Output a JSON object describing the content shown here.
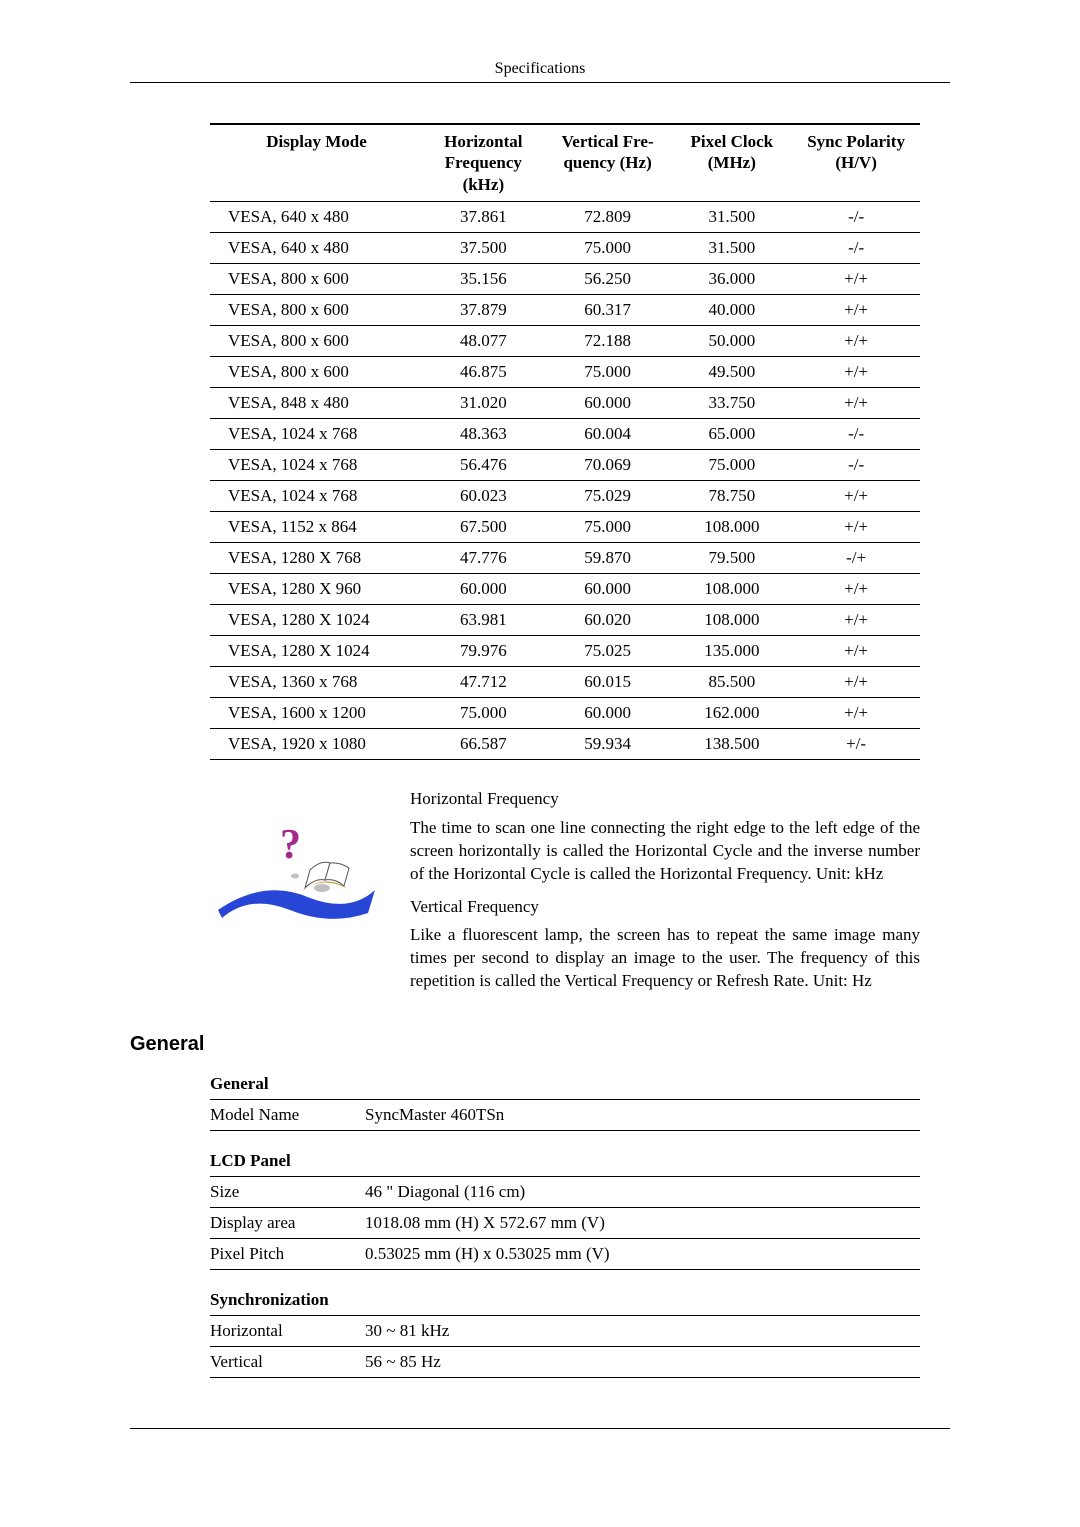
{
  "header": {
    "title": "Specifications"
  },
  "timing_table": {
    "headers": [
      "Display Mode",
      "Horizontal Frequency (kHz)",
      "Vertical Fre- quency (Hz)",
      "Pixel Clock (MHz)",
      "Sync Polarity (H/V)"
    ],
    "col_widths_pct": [
      30,
      17,
      18,
      17,
      18
    ],
    "rows": [
      [
        "VESA, 640 x 480",
        "37.861",
        "72.809",
        "31.500",
        "-/-"
      ],
      [
        "VESA, 640 x 480",
        "37.500",
        "75.000",
        "31.500",
        "-/-"
      ],
      [
        "VESA, 800 x 600",
        "35.156",
        "56.250",
        "36.000",
        "+/+"
      ],
      [
        "VESA, 800 x 600",
        "37.879",
        "60.317",
        "40.000",
        "+/+"
      ],
      [
        "VESA, 800 x 600",
        "48.077",
        "72.188",
        "50.000",
        "+/+"
      ],
      [
        "VESA, 800 x 600",
        "46.875",
        "75.000",
        "49.500",
        "+/+"
      ],
      [
        "VESA, 848 x 480",
        "31.020",
        "60.000",
        "33.750",
        "+/+"
      ],
      [
        "VESA, 1024 x 768",
        "48.363",
        "60.004",
        "65.000",
        "-/-"
      ],
      [
        "VESA, 1024 x 768",
        "56.476",
        "70.069",
        "75.000",
        "-/-"
      ],
      [
        "VESA, 1024 x 768",
        "60.023",
        "75.029",
        "78.750",
        "+/+"
      ],
      [
        "VESA, 1152 x 864",
        "67.500",
        "75.000",
        "108.000",
        "+/+"
      ],
      [
        "VESA, 1280 X 768",
        "47.776",
        "59.870",
        "79.500",
        "-/+"
      ],
      [
        "VESA, 1280 X 960",
        "60.000",
        "60.000",
        "108.000",
        "+/+"
      ],
      [
        "VESA, 1280 X 1024",
        "63.981",
        "60.020",
        "108.000",
        "+/+"
      ],
      [
        "VESA, 1280 X 1024",
        "79.976",
        "75.025",
        "135.000",
        "+/+"
      ],
      [
        "VESA, 1360 x 768",
        "47.712",
        "60.015",
        "85.500",
        "+/+"
      ],
      [
        "VESA, 1600 x 1200",
        "75.000",
        "60.000",
        "162.000",
        "+/+"
      ],
      [
        "VESA, 1920 x 1080",
        "66.587",
        "59.934",
        "138.500",
        "+/-"
      ]
    ]
  },
  "info": {
    "hf_title": "Horizontal Frequency",
    "hf_text": "The time to scan one line connecting the right edge to the left edge of the screen horizontally is called the Horizontal Cycle and the inverse number of the Horizontal Cycle is called the Horizontal Frequency. Unit: kHz",
    "vf_title": "Vertical Frequency",
    "vf_text": "Like a fluorescent lamp, the screen has to repeat the same image many times per second to display an image to the user. The frequency of this repetition is called the Vertical Frequency or Refresh Rate. Unit: Hz",
    "icon_colors": {
      "swoosh": "#2846d6",
      "book_pages": "#ffffff",
      "book_bind": "#c79a3a",
      "qmark": "#a12a8a"
    }
  },
  "general_section": {
    "heading": "General",
    "blocks": [
      {
        "title": "General",
        "rows": [
          {
            "k": "Model Name",
            "v": "SyncMaster 460TSn"
          }
        ]
      },
      {
        "title": "LCD Panel",
        "rows": [
          {
            "k": "Size",
            "v": "46 \" Diagonal (116 cm)"
          },
          {
            "k": "Display area",
            "v": "1018.08 mm (H) X 572.67 mm (V)"
          },
          {
            "k": "Pixel Pitch",
            "v": "0.53025 mm (H) x 0.53025 mm (V)"
          }
        ]
      },
      {
        "title": "Synchronization",
        "rows": [
          {
            "k": "Horizontal",
            "v": "30 ~ 81 kHz"
          },
          {
            "k": "Vertical",
            "v": "56 ~ 85 Hz"
          }
        ]
      }
    ]
  }
}
